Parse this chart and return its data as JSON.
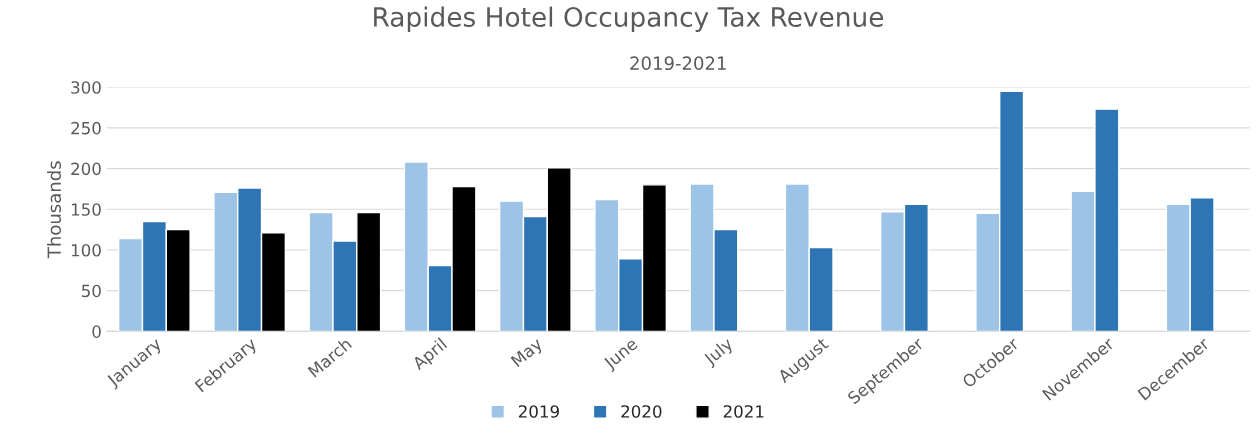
{
  "chart_data": {
    "type": "bar",
    "title": "Rapides Hotel Occupancy Tax Revenue",
    "subtitle": "2019-2021",
    "ylabel": "Thousands",
    "categories": [
      "January",
      "February",
      "March",
      "April",
      "May",
      "June",
      "July",
      "August",
      "September",
      "October",
      "November",
      "December"
    ],
    "series": [
      {
        "name": "2019",
        "color": "#9dc3e6",
        "values": [
          114,
          171,
          146,
          208,
          160,
          162,
          181,
          181,
          147,
          145,
          172,
          156
        ]
      },
      {
        "name": "2020",
        "color": "#2e75b6",
        "values": [
          135,
          176,
          111,
          81,
          141,
          89,
          125,
          103,
          156,
          295,
          273,
          164
        ]
      },
      {
        "name": "2021",
        "color": "#000000",
        "values": [
          125,
          121,
          146,
          178,
          201,
          180,
          null,
          null,
          null,
          null,
          null,
          null
        ]
      }
    ],
    "ylim": [
      0,
      300
    ],
    "yticks": [
      0,
      50,
      100,
      150,
      200,
      250,
      300
    ],
    "grid": "y",
    "legend": "bottom"
  }
}
